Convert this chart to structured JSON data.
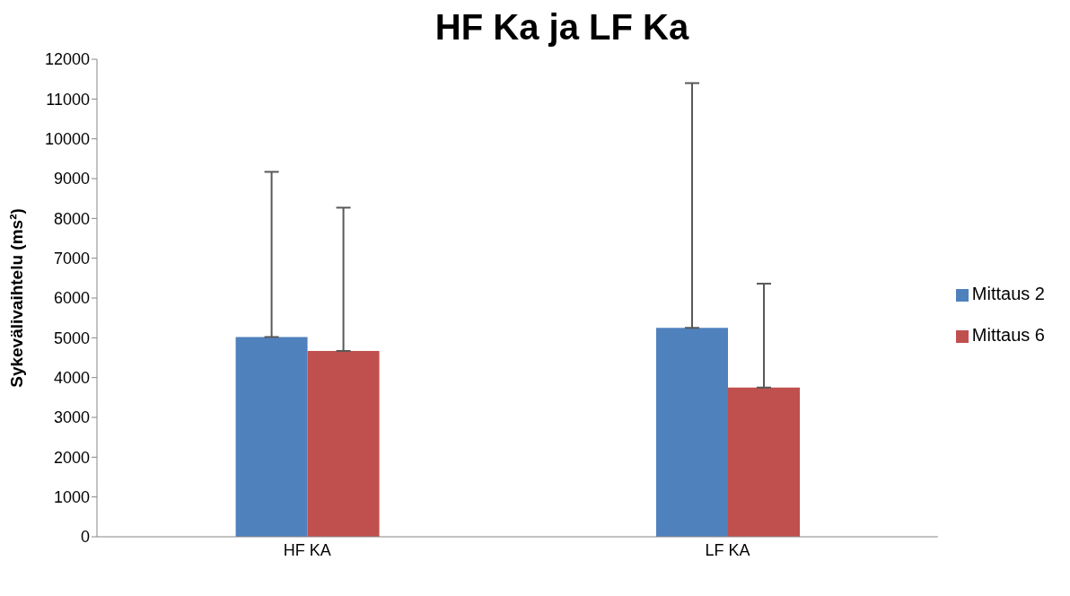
{
  "chart_data": {
    "type": "bar",
    "title": "HF Ka ja LF Ka",
    "ylabel": "Sykevälivaihtelu (ms²)",
    "categories": [
      "HF KA",
      "LF KA"
    ],
    "series": [
      {
        "name": "Mittaus 2",
        "color": "#4f81bd",
        "values": [
          5020,
          5250
        ],
        "errors": [
          [
            5020,
            9170
          ],
          [
            5250,
            11400
          ]
        ]
      },
      {
        "name": "Mittaus 6",
        "color": "#c0504d",
        "values": [
          4670,
          3750
        ],
        "errors": [
          [
            4670,
            8270
          ],
          [
            3750,
            6360
          ]
        ]
      }
    ],
    "ylim": [
      0,
      12000
    ],
    "yticks": [
      0,
      1000,
      2000,
      3000,
      4000,
      5000,
      6000,
      7000,
      8000,
      9000,
      10000,
      11000,
      12000
    ],
    "grid": false,
    "legend": "right"
  }
}
